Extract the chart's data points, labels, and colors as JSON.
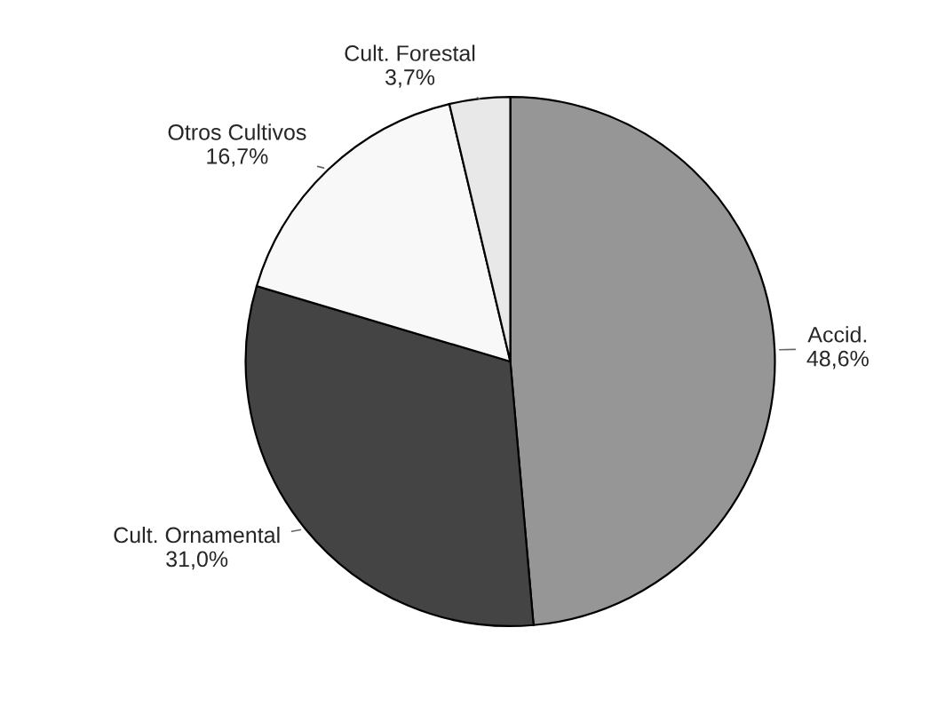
{
  "chart_data": {
    "type": "pie",
    "categories": [
      "Accid.",
      "Cult. Ornamental",
      "Otros Cultivos",
      "Cult. Forestal"
    ],
    "values": [
      48.6,
      31.0,
      16.7,
      3.7
    ],
    "value_labels": [
      "48,6%",
      "31,0%",
      "16,7%",
      "3,7%"
    ],
    "colors": [
      "#969696",
      "#444444",
      "#f8f8f8",
      "#e8e8e8"
    ],
    "legend": false
  }
}
